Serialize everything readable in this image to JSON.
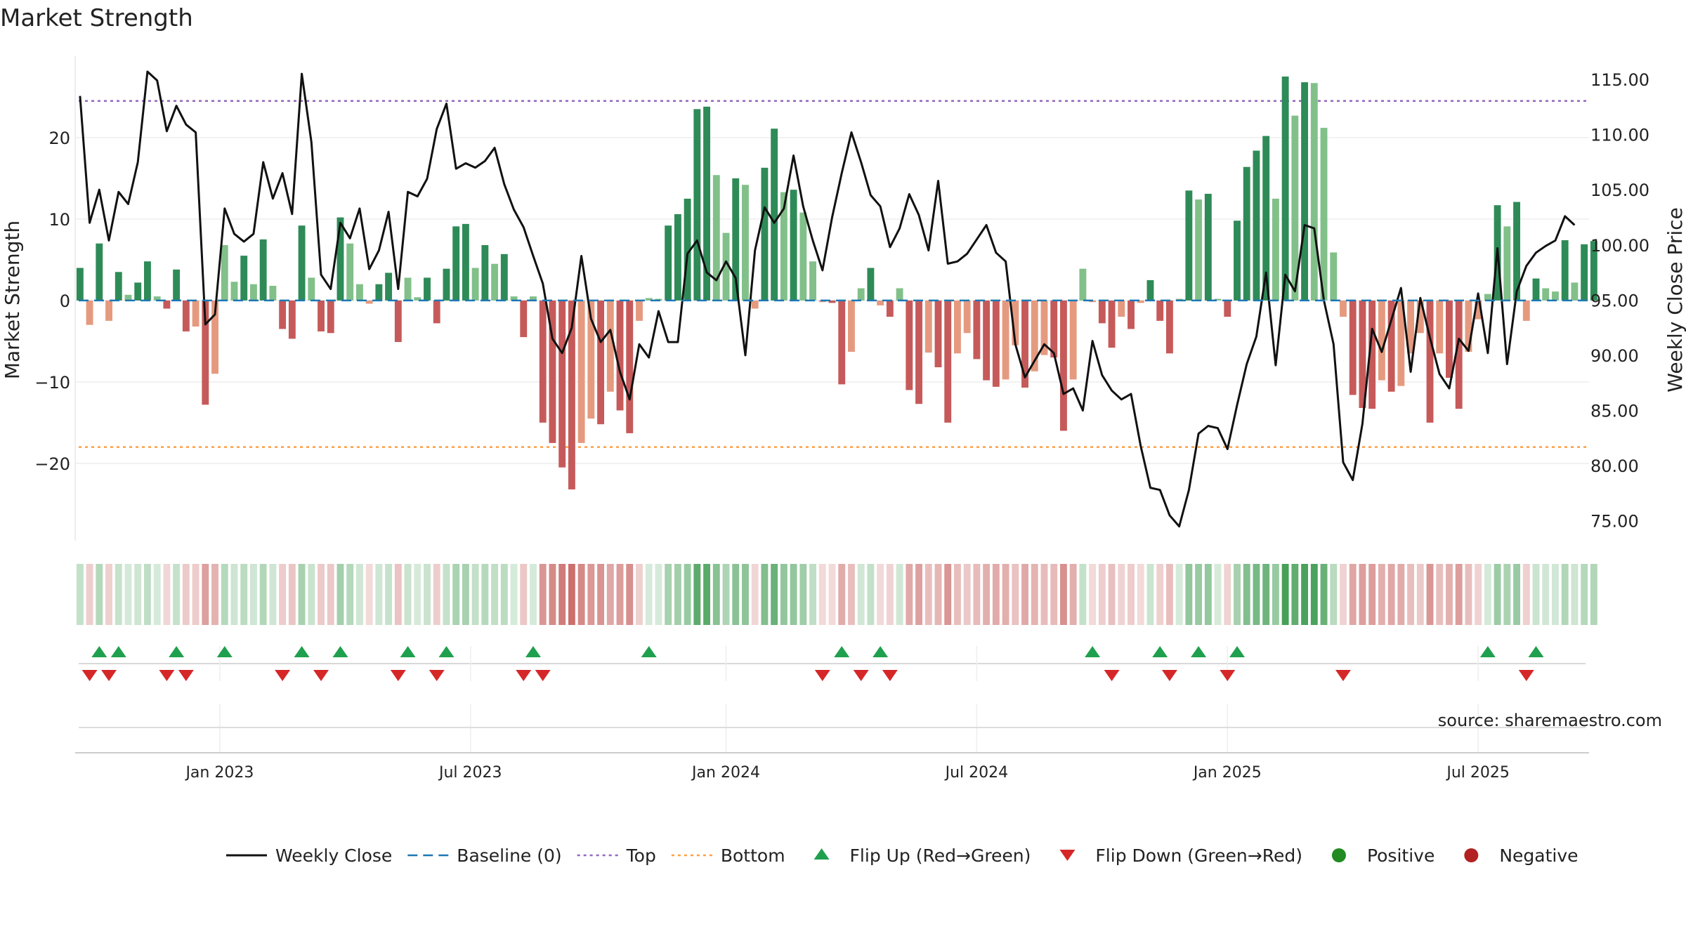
{
  "chart_data": {
    "type": "bar+line",
    "title": "Market Strength",
    "source": "source: sharemaestro.com",
    "left_axis": {
      "label": "Market Strength",
      "ticks": [
        20,
        10,
        0,
        -10,
        -20
      ],
      "tick_labels": [
        "20",
        "10",
        "0",
        "−10",
        "−20"
      ],
      "range": [
        -29.5,
        30
      ]
    },
    "right_axis": {
      "label": "Weekly Close Price",
      "ticks": [
        75,
        80,
        85,
        90,
        95,
        100,
        105,
        110,
        115
      ],
      "tick_labels": [
        "75.00",
        "80.00",
        "85.00",
        "90.00",
        "95.00",
        "100.00",
        "105.00",
        "110.00",
        "115.00"
      ],
      "range": [
        73.2,
        117.1
      ]
    },
    "x_axis": {
      "labels": [
        "Jan 2023",
        "Jul 2023",
        "Jan 2024",
        "Jul 2024",
        "Jan 2025",
        "Jul 2025"
      ],
      "label_weeks": [
        15,
        41,
        67.5,
        93.5,
        119.5,
        145.5
      ],
      "range_weeks": [
        0,
        157
      ]
    },
    "top_level": 24.5,
    "bottom_level": -18,
    "colors": {
      "strong_green": "#2e8b57",
      "light_green": "#82c08a",
      "strong_red": "#c65a5a",
      "light_red": "#e59a7f",
      "close_line": "#111111",
      "baseline": "#1f77b4",
      "top_line": "#9467bd",
      "bottom_line": "#ff9f43",
      "flip_up": "#1fa04e",
      "flip_down": "#d62728",
      "positive": "#228b22",
      "negative": "#b22222"
    },
    "series": [
      {
        "name": "Market Strength",
        "values": [
          4,
          -3,
          7,
          -2.5,
          3.5,
          0.7,
          2.2,
          4.8,
          0.5,
          -1,
          3.8,
          -3.8,
          -3.2,
          -12.8,
          -9,
          6.8,
          2.3,
          5.5,
          2,
          7.5,
          1.8,
          -3.5,
          -4.7,
          9.2,
          2.8,
          -3.8,
          -4,
          10.2,
          7,
          2,
          -0.4,
          2,
          3.4,
          -5.1,
          2.8,
          0.4,
          2.8,
          -2.8,
          3.9,
          9.1,
          9.4,
          4,
          6.8,
          4.5,
          5.7,
          0.5,
          -4.5,
          0.5,
          -15,
          -17.5,
          -20.5,
          -23.2,
          -17.5,
          -14.5,
          -15.2,
          -11.2,
          -13.5,
          -16.3,
          -2.5,
          0.3,
          0.2,
          9.2,
          10.6,
          12.5,
          23.5,
          23.8,
          15.4,
          8.3,
          15,
          14.2,
          -1,
          16.3,
          21.1,
          13.3,
          13.6,
          10.8,
          4.8,
          -0.2,
          -0.3,
          -10.3,
          -6.3,
          1.5,
          4,
          -0.6,
          -2,
          1.5,
          -11,
          -12.7,
          -6.4,
          -8.2,
          -15,
          -6.5,
          -4,
          -7.2,
          -9.8,
          -10.6,
          -9.7,
          -5.5,
          -10.7,
          -8.7,
          -6.7,
          -7,
          -16,
          -9.7,
          3.9,
          -0.2,
          -2.8,
          -5.8,
          -2,
          -3.5,
          -0.3,
          2.5,
          -2.5,
          -6.5,
          0.2,
          13.5,
          12.4,
          13.1,
          0.2,
          -2,
          9.8,
          16.4,
          18.4,
          20.2,
          12.5,
          27.5,
          22.7,
          26.8,
          26.7,
          21.2,
          5.9,
          -2,
          -11.6,
          -13.2,
          -13.3,
          -9.8,
          -11.2,
          -10.5,
          -6.5,
          -4,
          -15,
          -6.5,
          -9.5,
          -13.3,
          -6.3,
          -2.3,
          0.8,
          11.7,
          9.1,
          12.1,
          -2.5,
          2.7,
          1.5,
          1.1,
          7.4,
          2.2,
          6.9,
          7.3
        ]
      },
      {
        "name": "Weekly Close",
        "values": [
          113.5,
          102,
          105,
          100.4,
          104.8,
          103.7,
          107.5,
          115.7,
          114.9,
          110.3,
          112.6,
          110.9,
          110.2,
          92.8,
          93.7,
          103.3,
          101,
          100.3,
          101,
          107.5,
          104.2,
          106.5,
          102.8,
          115.5,
          109.3,
          97.3,
          96,
          102,
          100.6,
          103.3,
          97.8,
          99.5,
          103,
          96,
          104.8,
          104.4,
          106,
          110.5,
          112.8,
          106.9,
          107.4,
          107,
          107.6,
          108.8,
          105.5,
          103.2,
          101.6,
          99,
          96.5,
          91.5,
          90.2,
          92.5,
          99,
          93.3,
          91.2,
          92.3,
          88.5,
          86,
          91,
          89.8,
          94,
          91.2,
          91.2,
          99.2,
          100.4,
          97.5,
          96.8,
          98.5,
          97,
          90,
          99.5,
          103.4,
          102,
          103.3,
          108.1,
          103.5,
          100.4,
          97.7,
          102.5,
          106.5,
          110.2,
          107.5,
          104.5,
          103.5,
          99.8,
          101.5,
          104.6,
          102.7,
          99.5,
          105.8,
          98.3,
          98.5,
          99.2,
          100.5,
          101.8,
          99.3,
          98.5,
          91,
          88,
          89.5,
          91,
          90.2,
          86.5,
          87,
          85,
          91.3,
          88.2,
          86.8,
          86,
          86.5,
          81.8,
          78,
          77.8,
          75.5,
          74.5,
          77.8,
          82.9,
          83.6,
          83.4,
          81.5,
          85.5,
          89.2,
          91.7,
          97.5,
          89.1,
          97.3,
          95.8,
          101.8,
          101.5,
          95,
          91,
          80.3,
          78.7,
          83.8,
          92.4,
          90.3,
          93.2,
          96.1,
          88.5,
          95.2,
          91.6,
          88.3,
          87,
          91.5,
          90.4,
          95.6,
          90.2,
          99.7,
          89.2,
          95.8,
          98.1,
          99.3,
          99.9,
          100.4,
          102.6,
          101.8
        ]
      }
    ],
    "flip_up_weeks": [
      2,
      4,
      10,
      15,
      23,
      27,
      34,
      38,
      47,
      59,
      79,
      83,
      105,
      112,
      116,
      120,
      146,
      151
    ],
    "flip_down_weeks": [
      1,
      3,
      9,
      11,
      21,
      25,
      33,
      37,
      46,
      48,
      77,
      81,
      84,
      107,
      113,
      119,
      131,
      150
    ],
    "legend": [
      {
        "label": "Weekly Close",
        "kind": "line",
        "color": "#111111"
      },
      {
        "label": "Baseline (0)",
        "kind": "dash",
        "color": "#1f77b4"
      },
      {
        "label": "Top",
        "kind": "dot",
        "color": "#9467bd"
      },
      {
        "label": "Bottom",
        "kind": "dot",
        "color": "#ff9f43"
      },
      {
        "label": "Flip Up (Red→Green)",
        "kind": "tri-up",
        "color": "#1fa04e"
      },
      {
        "label": "Flip Down (Green→Red)",
        "kind": "tri-down",
        "color": "#d62728"
      },
      {
        "label": "Positive",
        "kind": "circle",
        "color": "#228b22"
      },
      {
        "label": "Negative",
        "kind": "circle",
        "color": "#b22222"
      }
    ]
  }
}
